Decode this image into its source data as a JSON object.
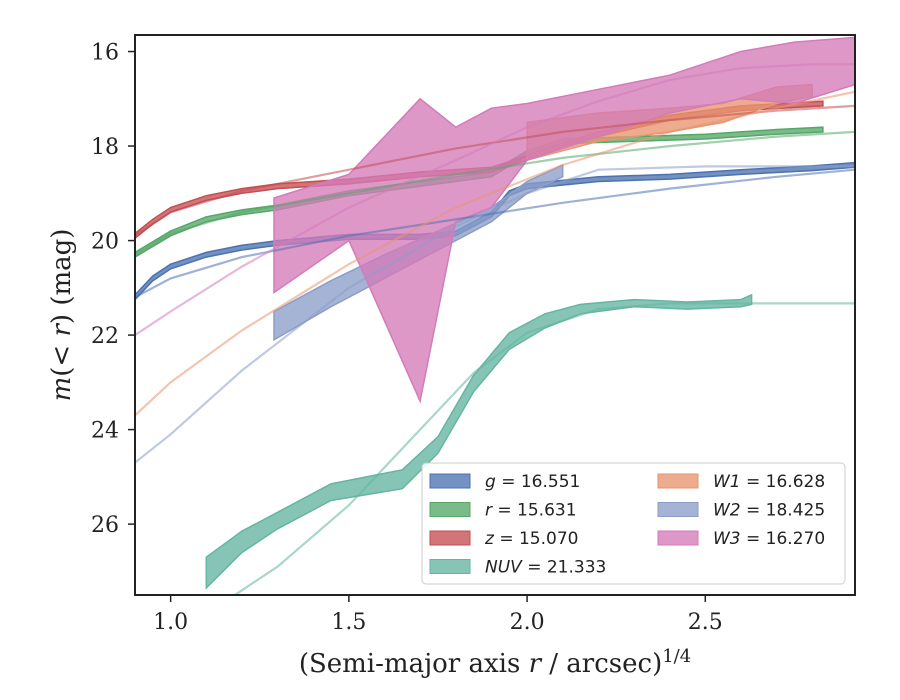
{
  "chart_data": {
    "type": "line",
    "xlabel": "(Semi-major axis r / arcsec)^1/4",
    "ylabel": "m(< r) (mag)",
    "xlim": [
      0.9,
      2.92
    ],
    "ylim": [
      27.5,
      15.65
    ],
    "y_inverted": true,
    "grid": false,
    "legend_placement": "lower-right",
    "x_ticks": [
      "1.0",
      "1.5",
      "2.0",
      "2.5"
    ],
    "y_ticks": [
      "16",
      "18",
      "20",
      "22",
      "24",
      "26"
    ],
    "series": [
      {
        "name": "g = 16.551",
        "color": "#4c72b0",
        "band": [
          [
            0.9,
            21.25,
            21.15
          ],
          [
            0.95,
            20.85,
            20.75
          ],
          [
            1.0,
            20.6,
            20.5
          ],
          [
            1.1,
            20.35,
            20.25
          ],
          [
            1.2,
            20.2,
            20.1
          ],
          [
            1.3,
            20.1,
            20.0
          ],
          [
            1.5,
            19.97,
            19.87
          ],
          [
            1.7,
            19.97,
            19.87
          ],
          [
            1.8,
            19.9,
            19.8
          ],
          [
            1.9,
            19.5,
            19.4
          ],
          [
            1.95,
            19.05,
            18.95
          ],
          [
            2.0,
            18.9,
            18.8
          ],
          [
            2.2,
            18.75,
            18.65
          ],
          [
            2.4,
            18.7,
            18.6
          ],
          [
            2.6,
            18.6,
            18.5
          ],
          [
            2.8,
            18.52,
            18.42
          ],
          [
            2.92,
            18.45,
            18.35
          ]
        ],
        "model": [
          [
            0.9,
            21.2
          ],
          [
            1.0,
            20.8
          ],
          [
            1.2,
            20.35
          ],
          [
            1.5,
            19.9
          ],
          [
            1.8,
            19.55
          ],
          [
            2.1,
            19.2
          ],
          [
            2.4,
            18.9
          ],
          [
            2.7,
            18.65
          ],
          [
            2.92,
            18.5
          ]
        ]
      },
      {
        "name": "r = 15.631",
        "color": "#55a868",
        "band": [
          [
            0.9,
            20.35,
            20.25
          ],
          [
            1.0,
            19.9,
            19.8
          ],
          [
            1.1,
            19.6,
            19.5
          ],
          [
            1.2,
            19.45,
            19.35
          ],
          [
            1.3,
            19.35,
            19.25
          ],
          [
            1.5,
            19.05,
            18.95
          ],
          [
            1.7,
            18.85,
            18.75
          ],
          [
            1.9,
            18.65,
            18.55
          ],
          [
            2.0,
            18.2,
            18.1
          ],
          [
            2.1,
            17.95,
            17.85
          ],
          [
            2.3,
            17.9,
            17.8
          ],
          [
            2.5,
            17.85,
            17.75
          ],
          [
            2.7,
            17.75,
            17.65
          ],
          [
            2.83,
            17.7,
            17.6
          ]
        ],
        "model": [
          [
            0.9,
            20.3
          ],
          [
            1.0,
            19.85
          ],
          [
            1.2,
            19.4
          ],
          [
            1.5,
            19.0
          ],
          [
            1.8,
            18.6
          ],
          [
            2.1,
            18.25
          ],
          [
            2.4,
            18.0
          ],
          [
            2.7,
            17.8
          ],
          [
            2.92,
            17.7
          ]
        ]
      },
      {
        "name": "z = 15.070",
        "color": "#c44e52",
        "band": [
          [
            0.9,
            19.95,
            19.85
          ],
          [
            0.95,
            19.65,
            19.55
          ],
          [
            1.0,
            19.4,
            19.3
          ],
          [
            1.1,
            19.15,
            19.05
          ],
          [
            1.2,
            19.0,
            18.9
          ],
          [
            1.3,
            18.9,
            18.8
          ],
          [
            1.5,
            18.8,
            18.7
          ],
          [
            1.7,
            18.65,
            18.55
          ],
          [
            1.9,
            18.55,
            18.45
          ],
          [
            2.0,
            18.3,
            18.2
          ],
          [
            2.05,
            18.15,
            18.05
          ],
          [
            2.2,
            17.8,
            17.7
          ],
          [
            2.4,
            17.45,
            17.35
          ],
          [
            2.6,
            17.25,
            17.15
          ],
          [
            2.83,
            17.15,
            17.05
          ]
        ],
        "model": [
          [
            0.9,
            19.9
          ],
          [
            1.0,
            19.4
          ],
          [
            1.2,
            18.95
          ],
          [
            1.5,
            18.5
          ],
          [
            1.8,
            18.05
          ],
          [
            2.1,
            17.7
          ],
          [
            2.4,
            17.45
          ],
          [
            2.7,
            17.25
          ],
          [
            2.92,
            17.15
          ]
        ]
      },
      {
        "name": "NUV = 21.333",
        "color": "#64b5a1",
        "band": [
          [
            1.1,
            27.35,
            26.7
          ],
          [
            1.2,
            26.6,
            26.15
          ],
          [
            1.3,
            26.1,
            25.75
          ],
          [
            1.45,
            25.5,
            25.15
          ],
          [
            1.65,
            25.25,
            24.85
          ],
          [
            1.75,
            24.5,
            24.15
          ],
          [
            1.85,
            23.2,
            22.85
          ],
          [
            1.95,
            22.3,
            21.95
          ],
          [
            2.05,
            21.85,
            21.55
          ],
          [
            2.15,
            21.55,
            21.35
          ],
          [
            2.3,
            21.4,
            21.25
          ],
          [
            2.45,
            21.45,
            21.3
          ],
          [
            2.6,
            21.4,
            21.25
          ],
          [
            2.63,
            21.35,
            21.15
          ]
        ],
        "model": [
          [
            1.18,
            27.5
          ],
          [
            1.3,
            26.9
          ],
          [
            1.5,
            25.6
          ],
          [
            1.7,
            24.0
          ],
          [
            1.85,
            22.8
          ],
          [
            2.0,
            21.95
          ],
          [
            2.2,
            21.45
          ],
          [
            2.4,
            21.33
          ],
          [
            2.6,
            21.33
          ],
          [
            2.92,
            21.33
          ]
        ]
      },
      {
        "name": "W1 = 16.628",
        "color": "#e8956f",
        "band": [
          [
            2.0,
            18.3,
            17.5
          ],
          [
            2.2,
            17.9,
            17.3
          ],
          [
            2.4,
            17.7,
            17.2
          ],
          [
            2.55,
            17.5,
            17.1
          ],
          [
            2.7,
            17.1,
            16.75
          ],
          [
            2.8,
            16.95,
            16.7
          ]
        ],
        "model": [
          [
            0.9,
            23.7
          ],
          [
            1.0,
            23.0
          ],
          [
            1.2,
            21.9
          ],
          [
            1.5,
            20.5
          ],
          [
            1.8,
            19.3
          ],
          [
            2.1,
            18.4
          ],
          [
            2.4,
            17.7
          ],
          [
            2.7,
            17.2
          ],
          [
            2.92,
            16.85
          ]
        ]
      },
      {
        "name": "W2 = 18.425",
        "color": "#8c9dc8",
        "band": [
          [
            1.29,
            22.1,
            21.5
          ],
          [
            1.45,
            21.4,
            20.85
          ],
          [
            1.6,
            20.8,
            20.3
          ],
          [
            1.75,
            20.2,
            19.8
          ],
          [
            1.9,
            19.6,
            19.3
          ],
          [
            2.0,
            19.0,
            18.75
          ],
          [
            2.1,
            18.65,
            18.4
          ]
        ],
        "model": [
          [
            0.9,
            24.7
          ],
          [
            1.0,
            24.1
          ],
          [
            1.2,
            22.75
          ],
          [
            1.5,
            21.0
          ],
          [
            1.8,
            19.7
          ],
          [
            2.0,
            19.0
          ],
          [
            2.2,
            18.5
          ],
          [
            2.5,
            18.43
          ],
          [
            2.92,
            18.43
          ]
        ]
      },
      {
        "name": "W3 = 16.270",
        "color": "#d47bb9",
        "band": [
          [
            1.29,
            21.1,
            19.1
          ],
          [
            1.5,
            20.0,
            18.6
          ],
          [
            1.7,
            23.4,
            17.0
          ],
          [
            1.8,
            19.6,
            17.6
          ],
          [
            1.9,
            19.3,
            17.2
          ],
          [
            2.0,
            18.3,
            17.1
          ],
          [
            2.2,
            17.8,
            16.8
          ],
          [
            2.4,
            17.3,
            16.5
          ],
          [
            2.6,
            17.0,
            16.0
          ],
          [
            2.75,
            17.1,
            15.8
          ],
          [
            2.92,
            16.7,
            15.7
          ]
        ],
        "model": [
          [
            0.9,
            22.0
          ],
          [
            1.0,
            21.5
          ],
          [
            1.2,
            20.55
          ],
          [
            1.5,
            19.3
          ],
          [
            1.8,
            18.3
          ],
          [
            2.0,
            17.6
          ],
          [
            2.2,
            17.05
          ],
          [
            2.4,
            16.6
          ],
          [
            2.6,
            16.35
          ],
          [
            2.8,
            16.27
          ],
          [
            2.92,
            16.27
          ]
        ]
      }
    ]
  },
  "axes": {
    "xlabel_prefix": "(Semi-major axis ",
    "xlabel_var": "r",
    "xlabel_suffix": " / arcsec)",
    "xlabel_exp": "1/4",
    "ylabel_var_m": "m",
    "ylabel_mid": "(< ",
    "ylabel_var_r": "r",
    "ylabel_suffix": ") (mag)"
  },
  "legend": {
    "entries": [
      {
        "var": "g",
        "rest": " = 16.551"
      },
      {
        "var": "r",
        "rest": " = 15.631"
      },
      {
        "var": "z",
        "rest": " = 15.070"
      },
      {
        "var": "NUV",
        "rest": " = 21.333"
      },
      {
        "var": "W1",
        "rest": " = 16.628"
      },
      {
        "var": "W2",
        "rest": " = 18.425"
      },
      {
        "var": "W3",
        "rest": " = 16.270"
      }
    ]
  }
}
